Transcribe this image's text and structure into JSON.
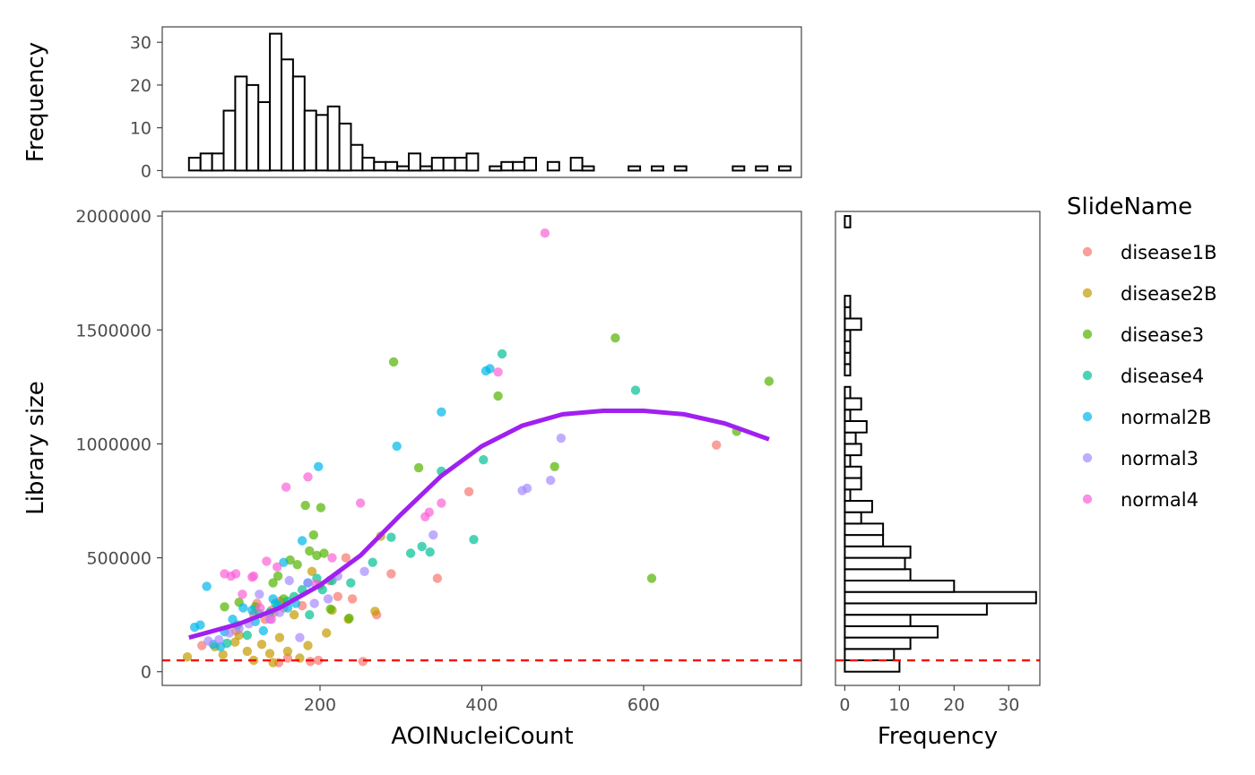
{
  "chart_data": [
    {
      "type": "scatter",
      "panel": "main",
      "xlabel": "AOINucleiCount",
      "ylabel": "Library size",
      "xlim": [
        5,
        795
      ],
      "ylim": [
        -60000,
        2020000
      ],
      "xticks": [
        200,
        400,
        600
      ],
      "yticks": [
        0,
        500000,
        1000000,
        1500000,
        2000000
      ],
      "xtick_labels": [
        "200",
        "400",
        "600"
      ],
      "ytick_labels": [
        "0",
        "500000",
        "1000000",
        "1500000",
        "2000000"
      ],
      "threshold_line": {
        "y": 50000,
        "color": "#ff0000",
        "style": "dashed"
      },
      "smooth_line": {
        "color": "#a020f0",
        "x": [
          38,
          100,
          150,
          200,
          250,
          300,
          350,
          400,
          450,
          500,
          550,
          600,
          650,
          700,
          755
        ],
        "y": [
          150000,
          210000,
          280000,
          380000,
          510000,
          690000,
          860000,
          990000,
          1080000,
          1130000,
          1145000,
          1145000,
          1130000,
          1090000,
          1020000
        ]
      },
      "legend": {
        "title": "SlideName",
        "position": "right",
        "entries": [
          "disease1B",
          "disease2B",
          "disease3",
          "disease4",
          "normal2B",
          "normal3",
          "normal4"
        ],
        "colors": [
          "#f8766d",
          "#c49a00",
          "#53b400",
          "#00c094",
          "#00b6eb",
          "#a58aff",
          "#fb61d7"
        ]
      },
      "series": [
        {
          "name": "disease1B",
          "color": "#f8766d",
          "x": [
            54,
            96,
            118,
            122,
            132,
            140,
            143,
            149,
            151,
            155,
            160,
            178,
            188,
            198,
            212,
            222,
            232,
            240,
            253,
            270,
            288,
            345,
            384,
            690
          ],
          "y": [
            115000,
            180000,
            250000,
            300000,
            230000,
            270000,
            260000,
            40000,
            310000,
            280000,
            60000,
            290000,
            45000,
            50000,
            400000,
            330000,
            500000,
            320000,
            45000,
            250000,
            430000,
            410000,
            790000,
            995000
          ]
        },
        {
          "name": "disease2B",
          "color": "#c49a00",
          "x": [
            36,
            70,
            80,
            95,
            100,
            110,
            118,
            128,
            138,
            142,
            150,
            160,
            168,
            175,
            185,
            190,
            200,
            208,
            215,
            235,
            268,
            275
          ],
          "y": [
            65000,
            110000,
            75000,
            130000,
            160000,
            90000,
            50000,
            120000,
            80000,
            40000,
            150000,
            90000,
            250000,
            60000,
            115000,
            440000,
            380000,
            170000,
            270000,
            230000,
            265000,
            595000
          ]
        },
        {
          "name": "disease3",
          "color": "#53b400",
          "x": [
            82,
            100,
            120,
            142,
            148,
            155,
            163,
            172,
            182,
            187,
            192,
            196,
            201,
            205,
            213,
            236,
            291,
            322,
            420,
            490,
            565,
            610,
            715,
            755
          ],
          "y": [
            285000,
            305000,
            285000,
            390000,
            420000,
            320000,
            490000,
            470000,
            730000,
            530000,
            600000,
            510000,
            720000,
            520000,
            275000,
            235000,
            1360000,
            895000,
            1210000,
            900000,
            1465000,
            410000,
            1055000,
            1275000
          ]
        },
        {
          "name": "disease4",
          "color": "#00c094",
          "x": [
            85,
            98,
            110,
            125,
            138,
            145,
            160,
            168,
            178,
            187,
            196,
            203,
            215,
            238,
            265,
            288,
            312,
            326,
            336,
            350,
            390,
            402,
            425,
            590
          ],
          "y": [
            125000,
            205000,
            160000,
            255000,
            260000,
            300000,
            310000,
            330000,
            360000,
            250000,
            410000,
            360000,
            400000,
            390000,
            480000,
            590000,
            520000,
            550000,
            525000,
            880000,
            580000,
            930000,
            1395000,
            1235000
          ]
        },
        {
          "name": "normal2B",
          "color": "#00b6eb",
          "x": [
            45,
            52,
            60,
            68,
            77,
            82,
            92,
            105,
            116,
            120,
            130,
            142,
            148,
            155,
            160,
            170,
            178,
            185,
            198,
            295,
            350,
            405,
            410
          ],
          "y": [
            195000,
            205000,
            375000,
            120000,
            110000,
            175000,
            230000,
            280000,
            270000,
            220000,
            180000,
            320000,
            290000,
            480000,
            280000,
            300000,
            575000,
            390000,
            900000,
            990000,
            1140000,
            1320000,
            1330000
          ]
        },
        {
          "name": "normal3",
          "color": "#a58aff",
          "x": [
            62,
            75,
            88,
            100,
            112,
            125,
            138,
            150,
            162,
            175,
            185,
            193,
            210,
            222,
            255,
            340,
            450,
            456,
            485,
            498
          ],
          "y": [
            135000,
            140000,
            170000,
            190000,
            210000,
            340000,
            230000,
            260000,
            400000,
            150000,
            390000,
            300000,
            320000,
            420000,
            440000,
            600000,
            795000,
            805000,
            840000,
            1025000
          ]
        },
        {
          "name": "normal4",
          "color": "#fb61d7",
          "x": [
            82,
            90,
            96,
            104,
            116,
            118,
            126,
            134,
            140,
            147,
            158,
            185,
            195,
            215,
            250,
            330,
            335,
            350,
            420,
            478
          ],
          "y": [
            430000,
            420000,
            430000,
            340000,
            415000,
            420000,
            280000,
            485000,
            230000,
            460000,
            810000,
            855000,
            385000,
            500000,
            740000,
            680000,
            700000,
            740000,
            1315000,
            1925000
          ]
        }
      ]
    },
    {
      "type": "bar",
      "panel": "top",
      "orientation": "vertical",
      "ylabel": "Frequency",
      "ylim": [
        -1.6,
        33.6
      ],
      "yticks": [
        0,
        10,
        20,
        30
      ],
      "ytick_labels": [
        "0",
        "10",
        "20",
        "30"
      ],
      "bin_start": 38,
      "bin_width": 14.3,
      "values": [
        3,
        4,
        4,
        14,
        22,
        20,
        16,
        32,
        26,
        22,
        14,
        13,
        15,
        11,
        6,
        3,
        2,
        2,
        1,
        4,
        1,
        3,
        3,
        3,
        4,
        0,
        1,
        2,
        2,
        3,
        0,
        2,
        0,
        3,
        1,
        0,
        0,
        0,
        1,
        0,
        1,
        0,
        1,
        0,
        0,
        0,
        0,
        1,
        0,
        1,
        0,
        1
      ]
    },
    {
      "type": "bar",
      "panel": "right",
      "orientation": "horizontal",
      "xlabel": "Frequency",
      "xlim": [
        -1.7,
        35.7
      ],
      "xticks": [
        0,
        10,
        20,
        30
      ],
      "xtick_labels": [
        "0",
        "10",
        "20",
        "30"
      ],
      "bin_start": 0,
      "bin_width": 50000,
      "threshold_line": {
        "y": 50000,
        "color": "#ff0000",
        "style": "dashed"
      },
      "values": [
        10,
        9,
        12,
        17,
        12,
        26,
        35,
        20,
        12,
        11,
        12,
        7,
        7,
        3,
        5,
        1,
        3,
        3,
        1,
        3,
        2,
        4,
        1,
        3,
        1,
        0,
        1,
        1,
        1,
        1,
        3,
        1,
        1,
        0,
        0,
        0,
        0,
        0,
        0,
        1
      ]
    }
  ]
}
